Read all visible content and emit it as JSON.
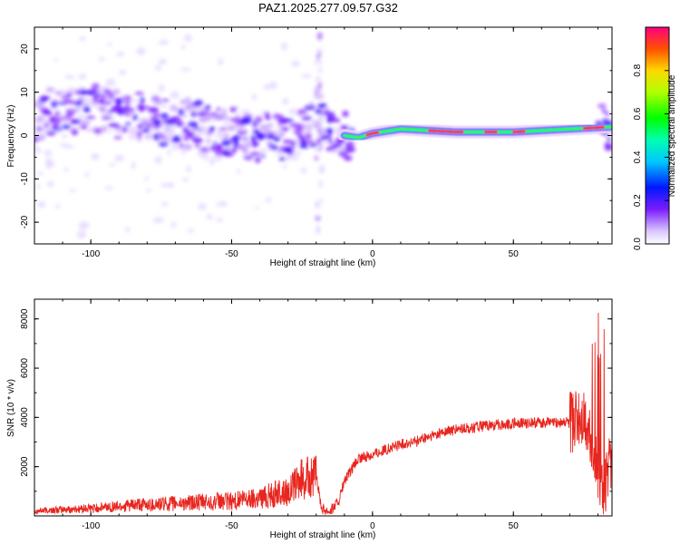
{
  "title": "PAZ1.2025.277.09.57.G32",
  "chart_data": [
    {
      "type": "heatmap",
      "xlabel": "Height of straight line (km)",
      "ylabel": "Frequency (Hz)",
      "xlim": [
        -120,
        85
      ],
      "ylim": [
        -25,
        25
      ],
      "xticks": [
        -100,
        -50,
        0,
        50
      ],
      "yticks": [
        -20,
        -10,
        0,
        10,
        20
      ],
      "colorbar": {
        "label": "Normalized spectral amplitude",
        "range": [
          0,
          1
        ],
        "ticks": [
          "0.0",
          "0.2",
          "0.4",
          "0.6",
          "0.8"
        ]
      },
      "ridge": {
        "description_points_x": [
          -118,
          -100,
          -80,
          -60,
          -45,
          -30,
          -20,
          -10,
          -5,
          0,
          10,
          30,
          50,
          70,
          85
        ],
        "description_points_freq": [
          5,
          6,
          4,
          2,
          0,
          -1,
          4,
          0,
          -0.5,
          0.5,
          1.5,
          0.8,
          0.8,
          1.5,
          2
        ]
      }
    },
    {
      "type": "line",
      "xlabel": "Height of straight line (km)",
      "ylabel": "SNR (10 * v/v)",
      "xlim": [
        -120,
        85
      ],
      "ylim": [
        0,
        8800
      ],
      "xticks": [
        -100,
        -50,
        0,
        50
      ],
      "yticks": [
        2000,
        4000,
        6000,
        8000
      ],
      "color": "#e8251e",
      "series": [
        {
          "name": "SNR",
          "x": [
            -120,
            -110,
            -100,
            -90,
            -80,
            -70,
            -60,
            -50,
            -40,
            -30,
            -25,
            -20,
            -18,
            -15,
            -12,
            -10,
            -5,
            0,
            5,
            10,
            15,
            20,
            25,
            30,
            40,
            50,
            60,
            70,
            75,
            78,
            80,
            82,
            84,
            85
          ],
          "values": [
            200,
            250,
            300,
            400,
            450,
            500,
            550,
            600,
            750,
            1000,
            1500,
            1600,
            300,
            200,
            600,
            1400,
            2300,
            2500,
            2700,
            2900,
            3000,
            3200,
            3400,
            3500,
            3650,
            3750,
            3800,
            3800,
            3900,
            3000,
            1500,
            800,
            2000,
            2600
          ]
        }
      ]
    }
  ]
}
